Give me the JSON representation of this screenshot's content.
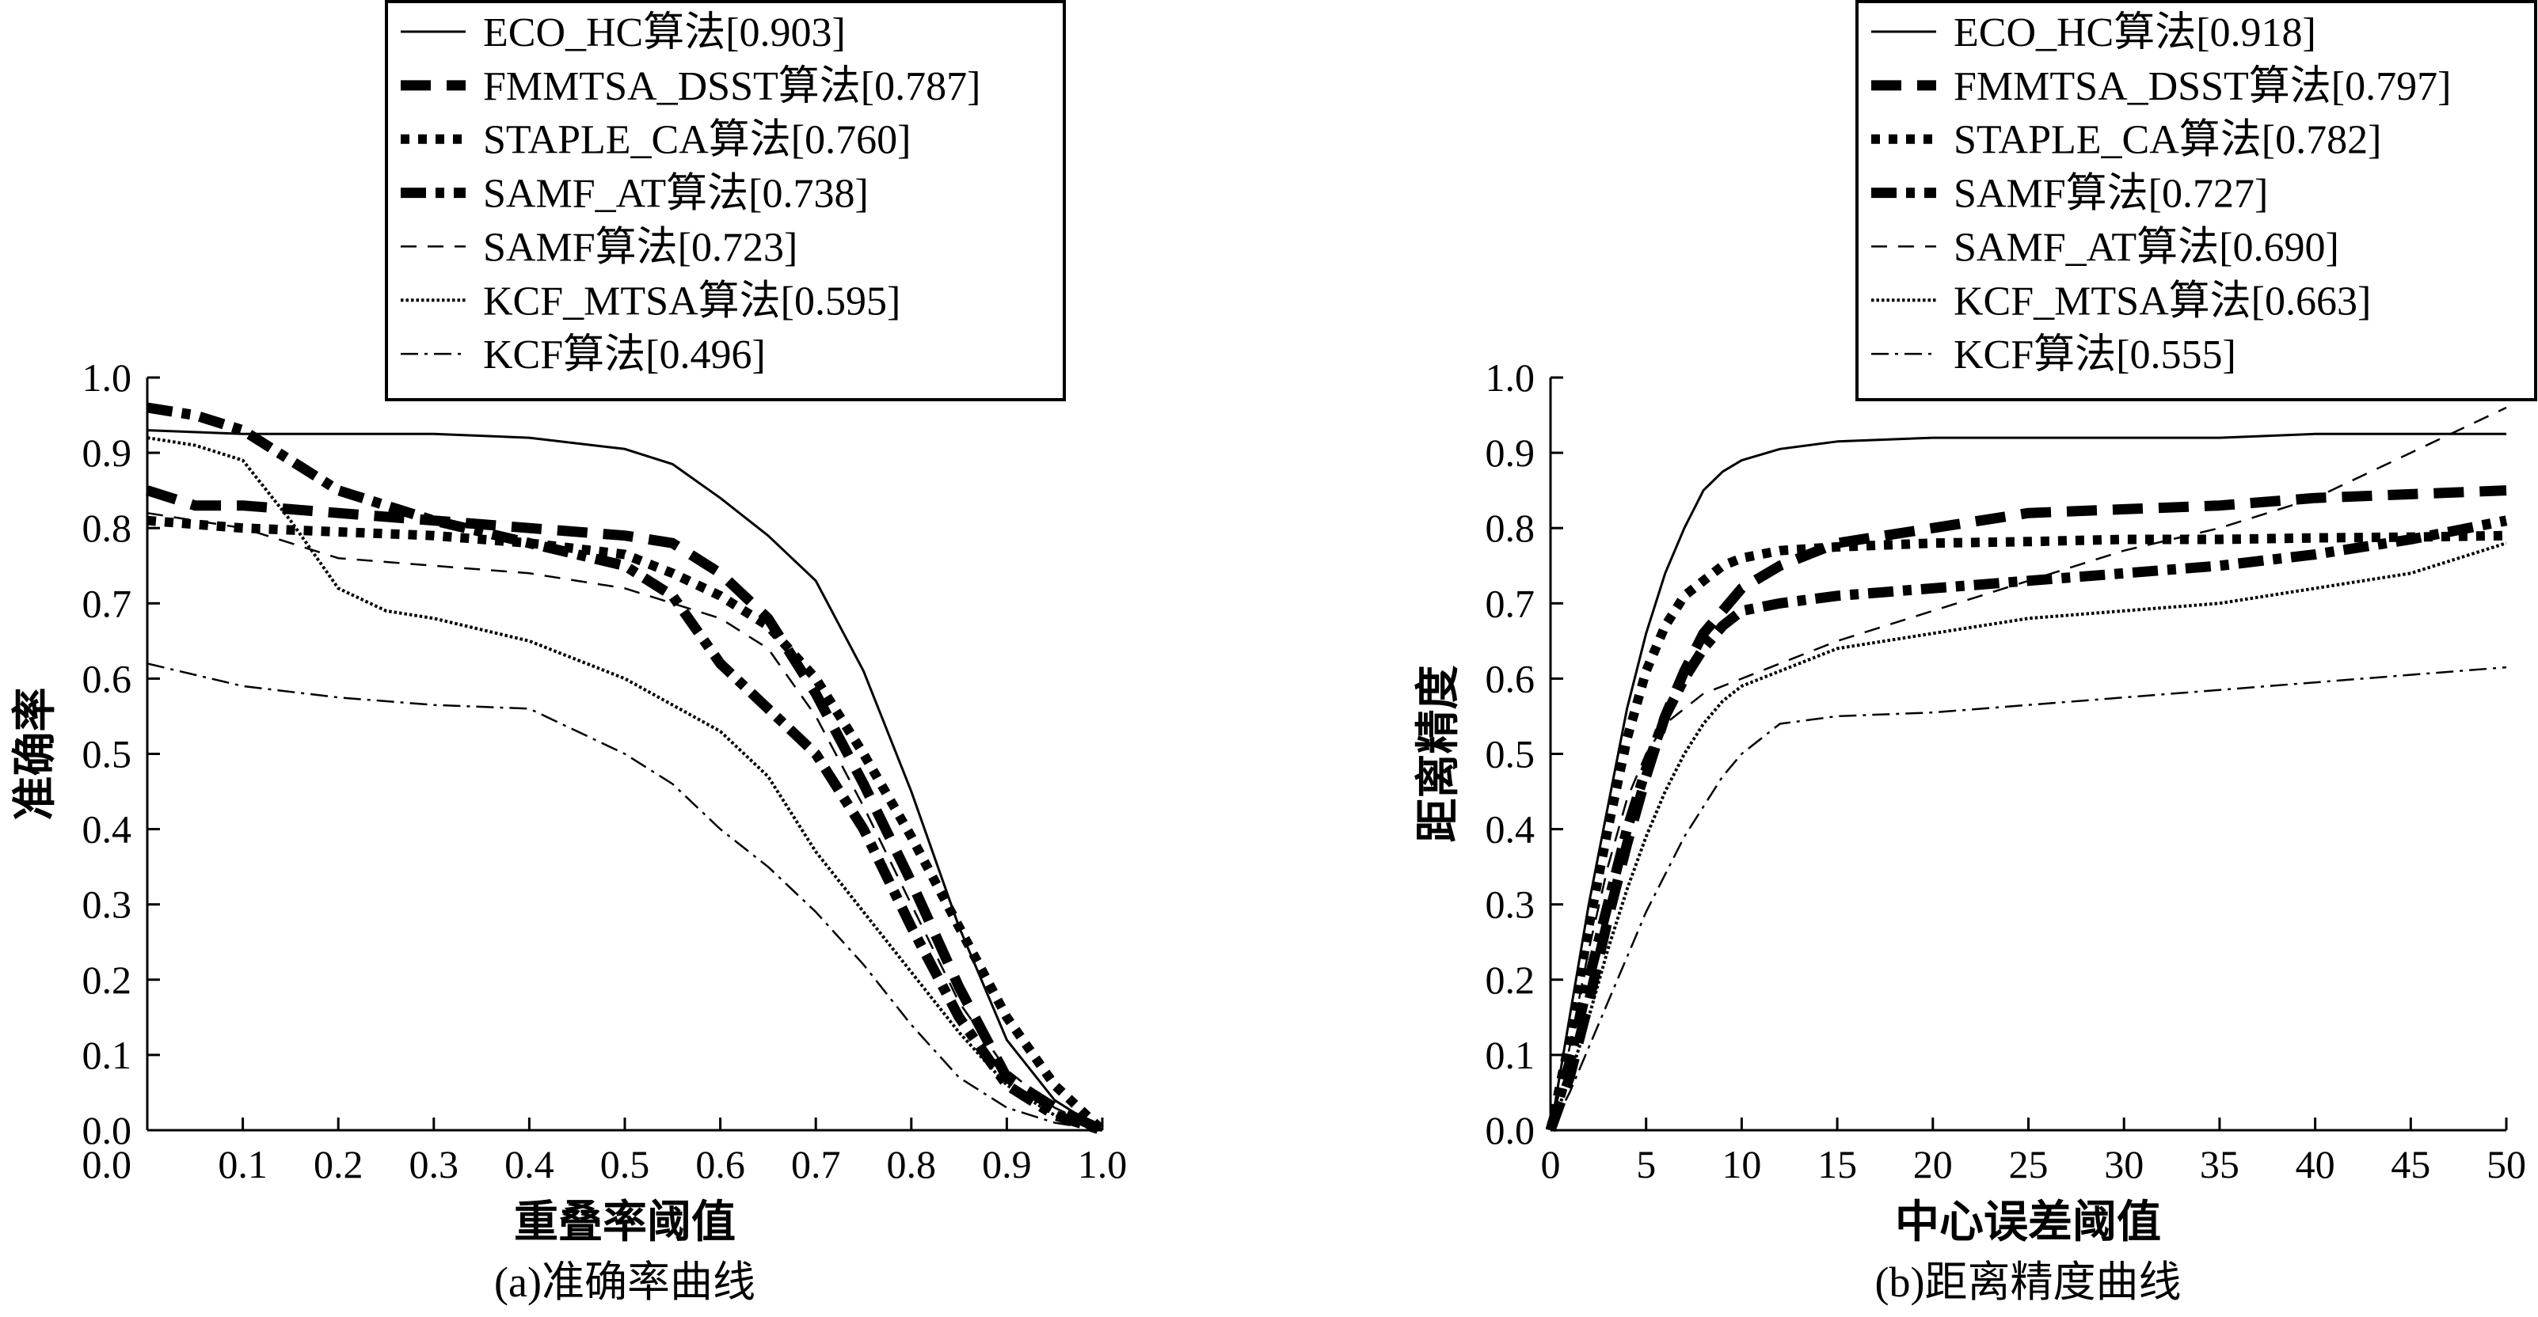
{
  "chart_data": [
    {
      "type": "line",
      "panel": "a",
      "title": "",
      "caption": "(a)准确率曲线",
      "xlabel": "重叠率阈值",
      "ylabel": "准确率",
      "xlim": [
        0,
        1
      ],
      "ylim": [
        0,
        1
      ],
      "xticks": [
        "0.0",
        "0.1",
        "0.2",
        "0.3",
        "0.4",
        "0.5",
        "0.6",
        "0.7",
        "0.8",
        "0.9",
        "1.0"
      ],
      "yticks": [
        "0.0",
        "0.1",
        "0.2",
        "0.3",
        "0.4",
        "0.5",
        "0.6",
        "0.7",
        "0.8",
        "0.9",
        "1.0"
      ],
      "legend_position": "top",
      "series": [
        {
          "name": "ECO_HC算法[0.903]",
          "style": "solid",
          "x": [
            0,
            0.1,
            0.2,
            0.3,
            0.4,
            0.5,
            0.55,
            0.6,
            0.65,
            0.7,
            0.75,
            0.8,
            0.85,
            0.9,
            0.95,
            1.0
          ],
          "values": [
            0.93,
            0.925,
            0.925,
            0.925,
            0.92,
            0.905,
            0.885,
            0.84,
            0.79,
            0.73,
            0.61,
            0.45,
            0.27,
            0.12,
            0.04,
            0.0
          ]
        },
        {
          "name": "FMMTSA_DSST算法[0.787]",
          "style": "dash-heavy",
          "x": [
            0,
            0.05,
            0.1,
            0.15,
            0.2,
            0.3,
            0.4,
            0.5,
            0.55,
            0.6,
            0.65,
            0.7,
            0.75,
            0.8,
            0.85,
            0.9,
            0.95,
            1.0
          ],
          "values": [
            0.85,
            0.83,
            0.83,
            0.825,
            0.82,
            0.81,
            0.8,
            0.79,
            0.78,
            0.74,
            0.68,
            0.58,
            0.46,
            0.33,
            0.19,
            0.07,
            0.03,
            0.0
          ]
        },
        {
          "name": "STAPLE_CA算法[0.760]",
          "style": "dot-heavy",
          "x": [
            0,
            0.1,
            0.2,
            0.3,
            0.4,
            0.5,
            0.55,
            0.6,
            0.65,
            0.7,
            0.75,
            0.8,
            0.85,
            0.9,
            0.95,
            1.0
          ],
          "values": [
            0.81,
            0.8,
            0.795,
            0.79,
            0.78,
            0.765,
            0.74,
            0.71,
            0.67,
            0.6,
            0.5,
            0.39,
            0.27,
            0.15,
            0.06,
            0.0
          ]
        },
        {
          "name": "SAMF_AT算法[0.738]",
          "style": "dashdot-heavy",
          "x": [
            0,
            0.05,
            0.1,
            0.15,
            0.2,
            0.25,
            0.3,
            0.4,
            0.5,
            0.55,
            0.6,
            0.65,
            0.7,
            0.75,
            0.8,
            0.85,
            0.9,
            0.95,
            1.0
          ],
          "values": [
            0.96,
            0.95,
            0.93,
            0.89,
            0.85,
            0.83,
            0.81,
            0.78,
            0.75,
            0.71,
            0.62,
            0.56,
            0.5,
            0.4,
            0.27,
            0.15,
            0.06,
            0.02,
            0.0
          ]
        },
        {
          "name": "SAMF算法[0.723]",
          "style": "dash-thin",
          "x": [
            0,
            0.1,
            0.2,
            0.3,
            0.4,
            0.5,
            0.55,
            0.6,
            0.65,
            0.7,
            0.75,
            0.8,
            0.85,
            0.9,
            0.95,
            1.0
          ],
          "values": [
            0.82,
            0.8,
            0.76,
            0.75,
            0.74,
            0.72,
            0.7,
            0.68,
            0.64,
            0.55,
            0.43,
            0.3,
            0.17,
            0.08,
            0.03,
            0.0
          ]
        },
        {
          "name": "KCF_MTSA算法[0.595]",
          "style": "dot-thin",
          "x": [
            0,
            0.05,
            0.1,
            0.15,
            0.2,
            0.25,
            0.3,
            0.4,
            0.5,
            0.6,
            0.65,
            0.7,
            0.75,
            0.8,
            0.85,
            0.9,
            0.95,
            1.0
          ],
          "values": [
            0.92,
            0.91,
            0.89,
            0.81,
            0.72,
            0.69,
            0.68,
            0.65,
            0.6,
            0.53,
            0.47,
            0.37,
            0.29,
            0.21,
            0.13,
            0.06,
            0.02,
            0.0
          ]
        },
        {
          "name": "KCF算法[0.496]",
          "style": "dashdot-thin",
          "x": [
            0,
            0.1,
            0.2,
            0.3,
            0.4,
            0.5,
            0.55,
            0.6,
            0.65,
            0.7,
            0.75,
            0.8,
            0.85,
            0.9,
            0.95,
            1.0
          ],
          "values": [
            0.62,
            0.59,
            0.575,
            0.565,
            0.56,
            0.5,
            0.46,
            0.4,
            0.35,
            0.29,
            0.22,
            0.14,
            0.07,
            0.03,
            0.01,
            0.0
          ]
        }
      ]
    },
    {
      "type": "line",
      "panel": "b",
      "title": "",
      "caption": "(b)距离精度曲线",
      "xlabel": "中心误差阈值",
      "ylabel": "距离精度",
      "xlim": [
        0,
        50
      ],
      "ylim": [
        0,
        1
      ],
      "xticks": [
        "0",
        "5",
        "10",
        "15",
        "20",
        "25",
        "30",
        "35",
        "40",
        "45",
        "50"
      ],
      "yticks": [
        "0.0",
        "0.1",
        "0.2",
        "0.3",
        "0.4",
        "0.5",
        "0.6",
        "0.7",
        "0.8",
        "0.9",
        "1.0"
      ],
      "legend_position": "top-right",
      "series": [
        {
          "name": "ECO_HC算法[0.918]",
          "style": "solid",
          "x": [
            0,
            1,
            2,
            3,
            4,
            5,
            6,
            7,
            8,
            9,
            10,
            12,
            15,
            20,
            25,
            30,
            35,
            40,
            45,
            50
          ],
          "values": [
            0,
            0.15,
            0.3,
            0.43,
            0.56,
            0.66,
            0.74,
            0.8,
            0.85,
            0.875,
            0.89,
            0.905,
            0.915,
            0.92,
            0.92,
            0.92,
            0.92,
            0.925,
            0.925,
            0.925
          ]
        },
        {
          "name": "FMMTSA_DSST算法[0.797]",
          "style": "dash-heavy",
          "x": [
            0,
            1,
            2,
            3,
            4,
            5,
            6,
            7,
            8,
            9,
            10,
            12,
            15,
            20,
            25,
            30,
            35,
            40,
            45,
            50
          ],
          "values": [
            0,
            0.07,
            0.17,
            0.28,
            0.38,
            0.47,
            0.55,
            0.61,
            0.66,
            0.69,
            0.72,
            0.75,
            0.78,
            0.8,
            0.82,
            0.825,
            0.83,
            0.84,
            0.845,
            0.85
          ]
        },
        {
          "name": "STAPLE_CA算法[0.782]",
          "style": "dot-heavy",
          "x": [
            0,
            1,
            2,
            3,
            4,
            5,
            6,
            7,
            8,
            9,
            10,
            12,
            15,
            20,
            25,
            30,
            35,
            40,
            45,
            50
          ],
          "values": [
            0,
            0.12,
            0.27,
            0.4,
            0.52,
            0.61,
            0.67,
            0.71,
            0.73,
            0.75,
            0.76,
            0.77,
            0.775,
            0.78,
            0.782,
            0.785,
            0.785,
            0.787,
            0.788,
            0.79
          ]
        },
        {
          "name": "SAMF算法[0.727]",
          "style": "dashdot-heavy",
          "x": [
            0,
            1,
            2,
            3,
            4,
            5,
            6,
            7,
            8,
            9,
            10,
            12,
            15,
            20,
            25,
            30,
            35,
            40,
            45,
            50
          ],
          "values": [
            0,
            0.09,
            0.2,
            0.3,
            0.4,
            0.48,
            0.55,
            0.6,
            0.64,
            0.67,
            0.69,
            0.7,
            0.71,
            0.72,
            0.73,
            0.74,
            0.75,
            0.765,
            0.785,
            0.81
          ]
        },
        {
          "name": "SAMF_AT算法[0.690]",
          "style": "dash-thin",
          "x": [
            0,
            1,
            2,
            3,
            4,
            5,
            6,
            7,
            8,
            9,
            10,
            12,
            15,
            20,
            25,
            30,
            35,
            40,
            45,
            50
          ],
          "values": [
            0,
            0.11,
            0.24,
            0.35,
            0.44,
            0.5,
            0.54,
            0.56,
            0.58,
            0.59,
            0.6,
            0.62,
            0.65,
            0.69,
            0.73,
            0.77,
            0.8,
            0.84,
            0.9,
            0.96
          ]
        },
        {
          "name": "KCF_MTSA算法[0.663]",
          "style": "dot-thin",
          "x": [
            0,
            1,
            2,
            3,
            4,
            5,
            6,
            7,
            8,
            9,
            10,
            12,
            15,
            20,
            25,
            30,
            35,
            40,
            45,
            50
          ],
          "values": [
            0,
            0.07,
            0.15,
            0.24,
            0.32,
            0.39,
            0.45,
            0.5,
            0.54,
            0.57,
            0.59,
            0.61,
            0.64,
            0.66,
            0.68,
            0.69,
            0.7,
            0.72,
            0.74,
            0.78
          ]
        },
        {
          "name": "KCF算法[0.555]",
          "style": "dashdot-thin",
          "x": [
            0,
            1,
            2,
            3,
            4,
            5,
            6,
            7,
            8,
            9,
            10,
            12,
            15,
            20,
            25,
            30,
            35,
            40,
            45,
            50
          ],
          "values": [
            0,
            0.05,
            0.11,
            0.17,
            0.23,
            0.29,
            0.34,
            0.39,
            0.43,
            0.47,
            0.5,
            0.54,
            0.55,
            0.555,
            0.565,
            0.575,
            0.585,
            0.595,
            0.605,
            0.615
          ]
        }
      ]
    }
  ]
}
